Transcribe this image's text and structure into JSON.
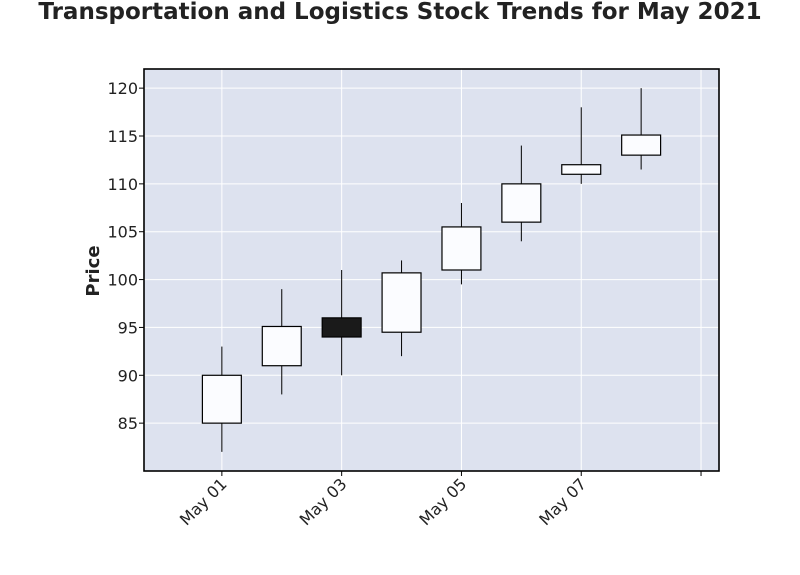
{
  "chart_data": {
    "type": "candlestick",
    "title": "Transportation and Logistics Stock Trends for May 2021",
    "xlabel": "",
    "ylabel": "Price",
    "ylim": [
      80,
      122
    ],
    "xlim": [
      "2021-04-29.7",
      "2021-05-09.3"
    ],
    "yticks": [
      85,
      90,
      95,
      100,
      105,
      110,
      115,
      120
    ],
    "xticks": [
      {
        "date": "2021-05-01",
        "label": "May 01"
      },
      {
        "date": "2021-05-03",
        "label": "May 03"
      },
      {
        "date": "2021-05-05",
        "label": "May 05"
      },
      {
        "date": "2021-05-07",
        "label": "May 07"
      },
      {
        "date": "2021-05-09",
        "label": ""
      }
    ],
    "grid": true,
    "colors": {
      "background": "#dde2ef",
      "up": "#fbfcff",
      "down": "#1a1a1a",
      "edge": "#000000",
      "grid": "#ffffff"
    },
    "candles": [
      {
        "date": "2021-05-01",
        "open": 85.0,
        "high": 93.0,
        "low": 82.0,
        "close": 90.0
      },
      {
        "date": "2021-05-02",
        "open": 91.0,
        "high": 99.0,
        "low": 88.0,
        "close": 95.1
      },
      {
        "date": "2021-05-03",
        "open": 96.0,
        "high": 101.0,
        "low": 90.0,
        "close": 94.0
      },
      {
        "date": "2021-05-04",
        "open": 94.5,
        "high": 102.0,
        "low": 92.0,
        "close": 100.7
      },
      {
        "date": "2021-05-05",
        "open": 101.0,
        "high": 108.0,
        "low": 99.5,
        "close": 105.5
      },
      {
        "date": "2021-05-06",
        "open": 106.0,
        "high": 114.0,
        "low": 104.0,
        "close": 110.0
      },
      {
        "date": "2021-05-07",
        "open": 111.0,
        "high": 118.0,
        "low": 110.0,
        "close": 112.0
      },
      {
        "date": "2021-05-08",
        "open": 113.0,
        "high": 120.0,
        "low": 111.5,
        "close": 115.1
      }
    ]
  }
}
